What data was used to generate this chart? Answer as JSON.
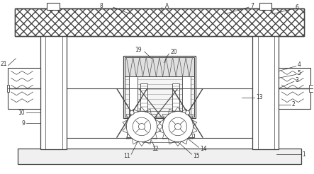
{
  "bg_color": "#ffffff",
  "line_color": "#444444",
  "label_color": "#333333",
  "fig_width": 4.43,
  "fig_height": 2.46,
  "dpi": 100,
  "lw_main": 0.8,
  "lw_thin": 0.5,
  "fs": 5.5
}
